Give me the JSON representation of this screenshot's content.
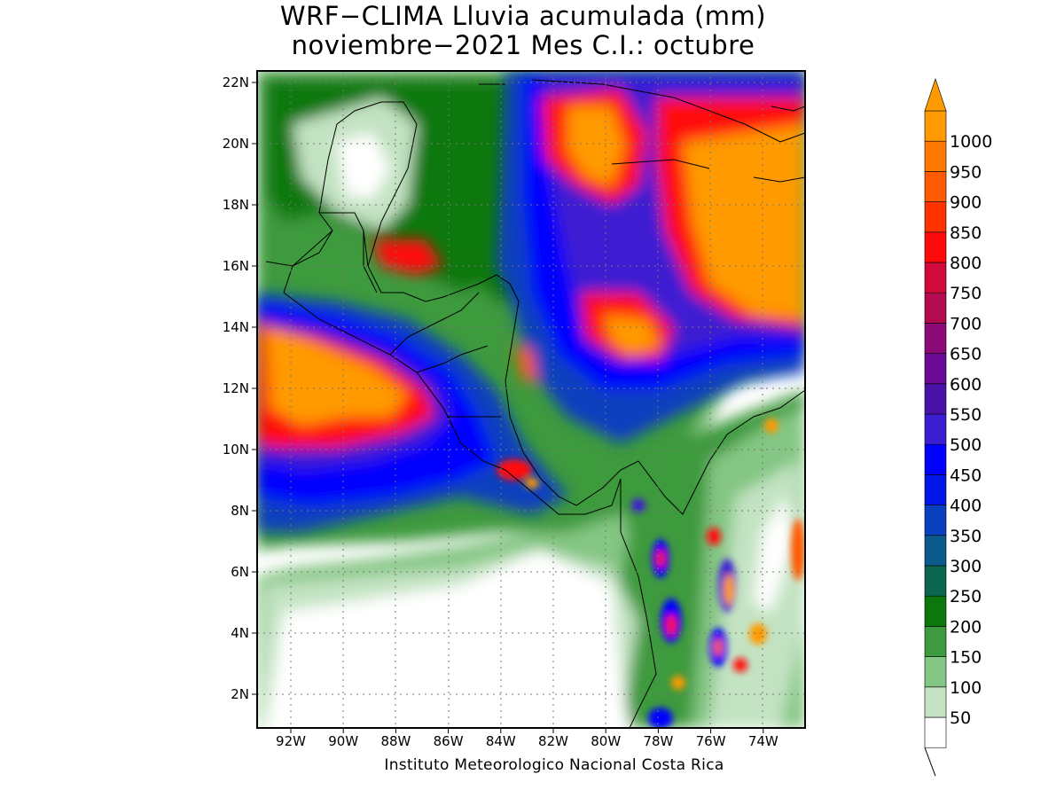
{
  "title": {
    "line1": "WRF−CLIMA Lluvia acumulada (mm)",
    "line2": "noviembre−2021 Mes C.I.: octubre"
  },
  "credit": "Instituto Meteorologico Nacional Costa Rica",
  "map": {
    "lon_range": [
      -93.3,
      -72.3
    ],
    "lat_range": [
      1.0,
      22.4
    ],
    "lat_ticks": [
      "22N",
      "20N",
      "18N",
      "16N",
      "14N",
      "12N",
      "10N",
      "8N",
      "6N",
      "4N",
      "2N"
    ],
    "lon_ticks": [
      "92W",
      "90W",
      "88W",
      "86W",
      "84W",
      "82W",
      "80W",
      "78W",
      "76W",
      "74W"
    ],
    "grid": "dotted"
  },
  "colorbar": {
    "levels": [
      "50",
      "100",
      "150",
      "200",
      "250",
      "300",
      "350",
      "400",
      "450",
      "500",
      "550",
      "600",
      "650",
      "700",
      "750",
      "800",
      "850",
      "900",
      "950",
      "1000"
    ],
    "colors": [
      "#ffffff",
      "#c3e3c2",
      "#84c683",
      "#3e9a3e",
      "#0a780a",
      "#0b6650",
      "#0a5a8c",
      "#0a3fbe",
      "#0016e8",
      "#0000ff",
      "#3c1ed2",
      "#4814a8",
      "#6a0a96",
      "#8c0a78",
      "#b40a50",
      "#d20a3c",
      "#ff0a0a",
      "#ff3200",
      "#ff5a00",
      "#ff7800",
      "#ff9a00"
    ],
    "over_color": "#ff9a00"
  }
}
